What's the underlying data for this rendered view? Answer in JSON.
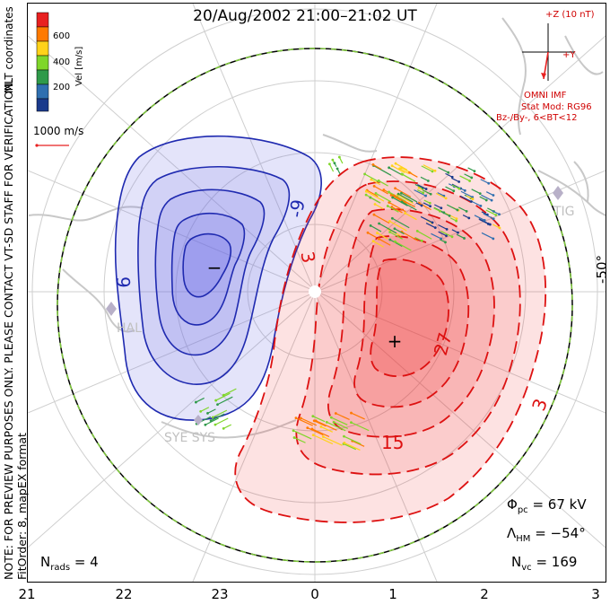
{
  "title": "20/Aug/2002 21:00–21:02 UT",
  "side_note": {
    "line1": "NOTE: FOR PREVIEW PURPOSES ONLY. PLEASE CONTACT VT-SD STAFF FOR VERIFICATION.",
    "line2": "FitOrder: 8, mapEX format"
  },
  "color_bar": {
    "label": "Vel [m/s]",
    "ticks": [
      "600",
      "400",
      "200"
    ],
    "coordinates": "MLT coordinates",
    "colors": [
      "#e82020",
      "#ff7a00",
      "#ffd21a",
      "#7fd62a",
      "#2f9a4a",
      "#2f6fb0",
      "#1a3a8c"
    ]
  },
  "vector_scale": {
    "label": "1000 m/s"
  },
  "imf": {
    "z_label": "+Z (10 nT)",
    "y_label": "+Y",
    "omni": "OMNI IMF",
    "stat_mod": "Stat Mod: RG96",
    "bin": "Bz-/By-, 6<BT<12"
  },
  "latitude_label": "-50°",
  "mlt_labels": [
    "21",
    "22",
    "23",
    "0",
    "1",
    "2",
    "3"
  ],
  "contour_labels": {
    "neg": [
      "-9",
      "9"
    ],
    "pos": [
      "3",
      "27",
      "15",
      "3"
    ],
    "min_marker": "−",
    "max_marker": "+"
  },
  "stations": [
    "HAL",
    "SYE SYS",
    "TIG"
  ],
  "stats": {
    "phi_pc": "= 67 kV",
    "lambda_hm": "= −54°",
    "n_vc": "= 169",
    "n_rads": "= 4"
  },
  "colors": {
    "negative_fill": "#6a6ae6",
    "positive_fill": "#ee3333",
    "negative_line": "#1f2ab0",
    "positive_line": "#dd1111",
    "hm_boundary": "#7ec83a"
  }
}
